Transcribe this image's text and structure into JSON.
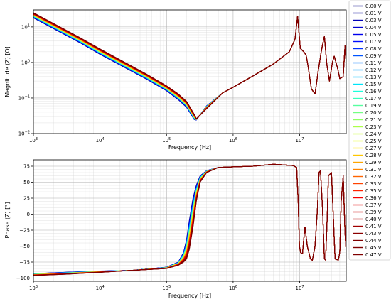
{
  "chart_data": [
    {
      "type": "line",
      "panel": "top",
      "xlabel": "Frequency [Hz]",
      "ylabel": "Magnitude (Z) [Ω]",
      "xscale": "log",
      "yscale": "log",
      "xlim": [
        1000,
        50000000
      ],
      "ylim": [
        0.01,
        30
      ],
      "x_ticks": [
        {
          "value": 1000,
          "base": "10",
          "exp": "3"
        },
        {
          "value": 10000,
          "base": "10",
          "exp": "4"
        },
        {
          "value": 100000,
          "base": "10",
          "exp": "5"
        },
        {
          "value": 1000000,
          "base": "10",
          "exp": "6"
        },
        {
          "value": 10000000,
          "base": "10",
          "exp": "7"
        }
      ],
      "y_ticks": [
        {
          "value": 0.01,
          "base": "10",
          "exp": "−2"
        },
        {
          "value": 0.1,
          "base": "10",
          "exp": "−1"
        },
        {
          "value": 1,
          "base": "10",
          "exp": "0"
        },
        {
          "value": 10,
          "base": "10",
          "exp": "1"
        }
      ],
      "grid": true,
      "x": [
        1000,
        5000,
        10000,
        50000,
        100000,
        150000,
        200000,
        260000,
        280000,
        400000,
        700000,
        1000000,
        2000000,
        4000000,
        7000000,
        8500000,
        9300000,
        10200000,
        11500000,
        12500000,
        13500000,
        15000000,
        17000000,
        19000000,
        21500000,
        23500000,
        25500000,
        28000000,
        31000000,
        33000000,
        37000000,
        40000000,
        45000000,
        48000000,
        50000000
      ],
      "series": [
        {
          "name": "0.00 V",
          "values": [
            18,
            3.6,
            1.7,
            0.34,
            0.16,
            0.09,
            0.055,
            0.025,
            0.024,
            0.06,
            0.14,
            0.2,
            0.42,
            0.9,
            2.0,
            4.5,
            20,
            2.5,
            2.0,
            1.6,
            0.7,
            0.18,
            0.13,
            0.6,
            2.5,
            5.5,
            0.9,
            0.3,
            1.0,
            1.5,
            0.7,
            0.35,
            0.4,
            3.0,
            0.9
          ]
        },
        {
          "name": "0.47 V",
          "values": [
            25,
            5,
            2.4,
            0.47,
            0.22,
            0.13,
            0.08,
            0.035,
            0.026,
            0.05,
            0.14,
            0.2,
            0.42,
            0.9,
            2.0,
            4.5,
            20,
            2.5,
            2.0,
            1.6,
            0.7,
            0.18,
            0.13,
            0.6,
            2.5,
            5.5,
            0.9,
            0.3,
            1.0,
            1.5,
            0.7,
            0.35,
            0.4,
            3.0,
            0.9
          ]
        }
      ]
    },
    {
      "type": "line",
      "panel": "bottom",
      "xlabel": "Frequency [Hz]",
      "ylabel": "Phase (Z) [°]",
      "xscale": "log",
      "yscale": "linear",
      "xlim": [
        1000,
        50000000
      ],
      "ylim": [
        -105,
        85
      ],
      "x_ticks": [
        {
          "value": 1000,
          "base": "10",
          "exp": "3"
        },
        {
          "value": 10000,
          "base": "10",
          "exp": "4"
        },
        {
          "value": 100000,
          "base": "10",
          "exp": "5"
        },
        {
          "value": 1000000,
          "base": "10",
          "exp": "6"
        },
        {
          "value": 10000000,
          "base": "10",
          "exp": "7"
        }
      ],
      "y_ticks": [
        -100,
        -75,
        -50,
        -25,
        0,
        25,
        50,
        75
      ],
      "grid": true,
      "x": [
        1000,
        3000,
        10000,
        30000,
        100000,
        150000,
        180000,
        200000,
        220000,
        250000,
        280000,
        320000,
        400000,
        600000,
        1000000,
        2000000,
        4000000,
        8000000,
        9000000,
        9500000,
        9900000,
        10300000,
        11000000,
        11500000,
        12000000,
        13000000,
        14500000,
        15500000,
        17000000,
        18500000,
        19500000,
        20500000,
        22000000,
        23500000,
        24500000,
        26000000,
        27000000,
        30000000,
        34000000,
        38000000,
        40000000,
        42000000,
        45000000,
        48000000,
        50000000
      ],
      "series": [
        {
          "name": "0.00 V",
          "values": [
            -93,
            -91,
            -89,
            -88,
            -83,
            -75,
            -60,
            -40,
            -10,
            25,
            45,
            60,
            68,
            73,
            74,
            75,
            78,
            76,
            73,
            20,
            -50,
            -60,
            -62,
            -40,
            -20,
            -50,
            -70,
            -72,
            -50,
            10,
            65,
            68,
            10,
            -70,
            -72,
            0,
            60,
            65,
            -70,
            -72,
            -60,
            20,
            60,
            -30,
            -60
          ]
        },
        {
          "name": "0.47 V",
          "values": [
            -96,
            -94,
            -91,
            -88,
            -85,
            -80,
            -75,
            -70,
            -55,
            -20,
            20,
            50,
            65,
            73,
            74,
            75,
            78,
            76,
            73,
            20,
            -50,
            -60,
            -62,
            -40,
            -20,
            -50,
            -70,
            -72,
            -50,
            10,
            65,
            68,
            10,
            -70,
            -72,
            0,
            60,
            65,
            -70,
            -72,
            -60,
            20,
            60,
            -30,
            -60
          ]
        }
      ]
    }
  ],
  "legend": {
    "placement": "right",
    "entries": [
      {
        "label": "0.00 V",
        "color": "#00007f"
      },
      {
        "label": "0.01 V",
        "color": "#00009a"
      },
      {
        "label": "0.03 V",
        "color": "#0000b6"
      },
      {
        "label": "0.04 V",
        "color": "#0000d1"
      },
      {
        "label": "0.05 V",
        "color": "#0000ed"
      },
      {
        "label": "0.07 V",
        "color": "#000cff"
      },
      {
        "label": "0.08 V",
        "color": "#0030ff"
      },
      {
        "label": "0.09 V",
        "color": "#0054ff"
      },
      {
        "label": "0.11 V",
        "color": "#0078ff"
      },
      {
        "label": "0.12 V",
        "color": "#009cff"
      },
      {
        "label": "0.13 V",
        "color": "#00c0ff"
      },
      {
        "label": "0.15 V",
        "color": "#00e4f8"
      },
      {
        "label": "0.16 V",
        "color": "#1cffdb"
      },
      {
        "label": "0.17 V",
        "color": "#39ffbe"
      },
      {
        "label": "0.19 V",
        "color": "#56ffa0"
      },
      {
        "label": "0.20 V",
        "color": "#73ff83"
      },
      {
        "label": "0.21 V",
        "color": "#90ff66"
      },
      {
        "label": "0.23 V",
        "color": "#adff49"
      },
      {
        "label": "0.24 V",
        "color": "#cbff2c"
      },
      {
        "label": "0.25 V",
        "color": "#e8ff0f"
      },
      {
        "label": "0.27 V",
        "color": "#ffe800"
      },
      {
        "label": "0.28 V",
        "color": "#ffc700"
      },
      {
        "label": "0.29 V",
        "color": "#ffa600"
      },
      {
        "label": "0.31 V",
        "color": "#ff8500"
      },
      {
        "label": "0.32 V",
        "color": "#ff6400"
      },
      {
        "label": "0.33 V",
        "color": "#ff4300"
      },
      {
        "label": "0.35 V",
        "color": "#ff2200"
      },
      {
        "label": "0.36 V",
        "color": "#f50000"
      },
      {
        "label": "0.37 V",
        "color": "#e00000"
      },
      {
        "label": "0.39 V",
        "color": "#cb0000"
      },
      {
        "label": "0.40 V",
        "color": "#b60000"
      },
      {
        "label": "0.41 V",
        "color": "#a00000"
      },
      {
        "label": "0.43 V",
        "color": "#8b0000"
      },
      {
        "label": "0.44 V",
        "color": "#7f0000"
      },
      {
        "label": "0.45 V",
        "color": "#7f0000"
      },
      {
        "label": "0.47 V",
        "color": "#7f0000"
      }
    ]
  }
}
